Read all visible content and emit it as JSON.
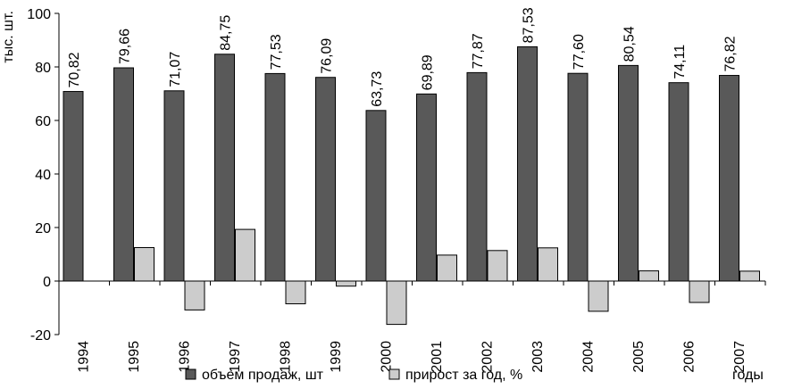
{
  "chart_data": {
    "type": "bar",
    "ylabel": "тыс. шт.",
    "xlabel": "годы",
    "ylim": [
      -20,
      100
    ],
    "yticks": [
      -20,
      0,
      20,
      40,
      60,
      80,
      100
    ],
    "grid": false,
    "legend_position": "bottom",
    "categories": [
      "1994",
      "1995",
      "1996",
      "1997",
      "1998",
      "1999",
      "2000",
      "2001",
      "2002",
      "2003",
      "2004",
      "2005",
      "2006",
      "2007"
    ],
    "series": [
      {
        "name": "объем продаж, шт",
        "color": "#595959",
        "values": [
          70.82,
          79.66,
          71.07,
          84.75,
          77.53,
          76.09,
          63.73,
          69.89,
          77.87,
          87.53,
          77.6,
          80.54,
          74.11,
          76.82
        ],
        "labels": [
          "70,82",
          "79,66",
          "71,07",
          "84,75",
          "77,53",
          "76,09",
          "63,73",
          "69,89",
          "77,87",
          "87,53",
          "77,60",
          "80,54",
          "74,11",
          "76,82"
        ]
      },
      {
        "name": "прирост за год, %",
        "color": "#cccccc",
        "values": [
          0,
          12.5,
          -10.8,
          19.3,
          -8.5,
          -1.9,
          -16.2,
          9.7,
          11.4,
          12.4,
          -11.3,
          3.8,
          -8.0,
          3.7
        ]
      }
    ]
  }
}
